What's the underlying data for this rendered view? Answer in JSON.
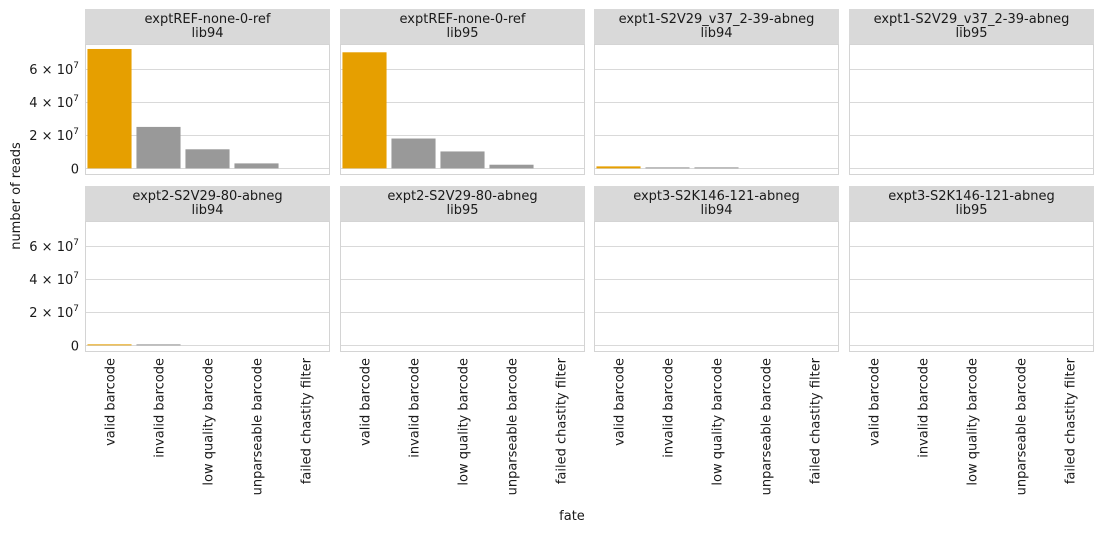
{
  "chart_data": {
    "type": "bar",
    "xlabel": "fate",
    "ylabel": "number of reads",
    "ylim": [
      -4000000,
      75000000
    ],
    "y_ticks": [
      {
        "value": 0,
        "mantissa": "0",
        "exponent": ""
      },
      {
        "value": 20000000,
        "mantissa": "2 × 10",
        "exponent": "7"
      },
      {
        "value": 40000000,
        "mantissa": "4 × 10",
        "exponent": "7"
      },
      {
        "value": 60000000,
        "mantissa": "6 × 10",
        "exponent": "7"
      }
    ],
    "grid": true,
    "categories": [
      "valid barcode",
      "invalid barcode",
      "low quality barcode",
      "unparseable barcode",
      "failed chastity filter"
    ],
    "colors": {
      "valid barcode": "#e69f00",
      "other": "#999999",
      "strip_bg": "#d9d9d9",
      "panel_border": "#d4d4d4",
      "grid": "#d9d9d9"
    },
    "panels": [
      {
        "title": [
          "exptREF-none-0-ref",
          "lib94"
        ],
        "values": [
          72000000,
          25000000,
          11500000,
          3000000,
          0
        ]
      },
      {
        "title": [
          "exptREF-none-0-ref",
          "lib95"
        ],
        "values": [
          70000000,
          18000000,
          10200000,
          2200000,
          0
        ]
      },
      {
        "title": [
          "expt1-S2V29_v37_2-39-abneg",
          "lib94"
        ],
        "values": [
          1200000,
          600000,
          400000,
          0,
          0
        ]
      },
      {
        "title": [
          "expt1-S2V29_v37_2-39-abneg",
          "lib95"
        ],
        "values": [
          0,
          0,
          0,
          0,
          0
        ]
      },
      {
        "title": [
          "expt2-S2V29-80-abneg",
          "lib94"
        ],
        "values": [
          600000,
          350000,
          0,
          0,
          0
        ]
      },
      {
        "title": [
          "expt2-S2V29-80-abneg",
          "lib95"
        ],
        "values": [
          0,
          0,
          0,
          0,
          0
        ]
      },
      {
        "title": [
          "expt3-S2K146-121-abneg",
          "lib94"
        ],
        "values": [
          0,
          0,
          0,
          0,
          0
        ]
      },
      {
        "title": [
          "expt3-S2K146-121-abneg",
          "lib95"
        ],
        "values": [
          0,
          0,
          0,
          0,
          0
        ]
      }
    ]
  }
}
